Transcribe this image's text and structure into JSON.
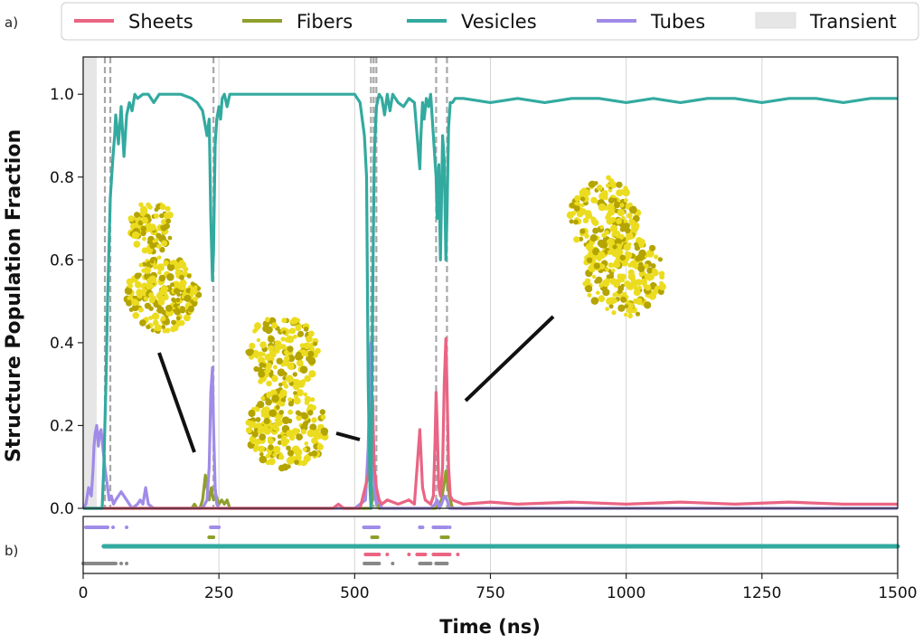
{
  "panel_labels": {
    "a": "a)",
    "b": "b)"
  },
  "colors": {
    "sheets": "#ea6483",
    "fibers": "#8f9f2c",
    "vesicles": "#33aaa0",
    "tubes": "#a08be8",
    "transient": "#e6e6e6",
    "grey": "#888888",
    "blob": "#ecdc20",
    "blob_dark": "#b4a400"
  },
  "legend": [
    {
      "label": "Sheets",
      "color": "#ea6483",
      "kind": "line"
    },
    {
      "label": "Fibers",
      "color": "#8f9f2c",
      "kind": "line"
    },
    {
      "label": "Vesicles",
      "color": "#33aaa0",
      "kind": "line"
    },
    {
      "label": "Tubes",
      "color": "#a08be8",
      "kind": "line"
    },
    {
      "label": "Transient",
      "color": "#e6e6e6",
      "kind": "patch"
    }
  ],
  "chart_data": [
    {
      "type": "line",
      "xlabel": "Time (ns)",
      "ylabel": "Structure Population Fraction",
      "xlim": [
        0,
        1500
      ],
      "ylim": [
        0,
        1.09
      ],
      "xticks": [
        0,
        250,
        500,
        750,
        1000,
        1250,
        1500
      ],
      "yticks": [
        0.0,
        0.2,
        0.4,
        0.6,
        0.8,
        1.0
      ],
      "ytick_labels": [
        "0.0",
        "0.2",
        "0.4",
        "0.6",
        "0.8",
        "1.0"
      ],
      "grid": "vertical",
      "legend_position": "top, outside",
      "transient_region": [
        0,
        25
      ],
      "transition_lines": [
        40,
        50,
        240,
        530,
        535,
        540,
        650,
        670
      ],
      "series": [
        {
          "name": "Vesicles",
          "x": [
            0,
            35,
            38,
            42,
            45,
            50,
            55,
            58,
            60,
            65,
            70,
            75,
            80,
            85,
            90,
            95,
            100,
            110,
            120,
            130,
            140,
            150,
            160,
            180,
            200,
            210,
            220,
            228,
            232,
            235,
            238,
            240,
            243,
            246,
            250,
            253,
            256,
            260,
            265,
            270,
            275,
            280,
            300,
            350,
            400,
            450,
            480,
            500,
            510,
            518,
            522,
            525,
            528,
            530,
            533,
            536,
            540,
            545,
            550,
            555,
            560,
            565,
            570,
            580,
            590,
            600,
            610,
            615,
            620,
            622,
            625,
            628,
            632,
            636,
            640,
            645,
            650,
            652,
            655,
            658,
            660,
            662,
            665,
            668,
            670,
            673,
            676,
            680,
            685,
            700,
            750,
            800,
            850,
            900,
            950,
            1000,
            1050,
            1100,
            1150,
            1200,
            1250,
            1300,
            1350,
            1400,
            1450,
            1500
          ],
          "values": [
            0.0,
            0.0,
            0.1,
            0.3,
            0.5,
            0.75,
            0.85,
            0.9,
            0.95,
            0.88,
            0.97,
            0.85,
            0.95,
            0.98,
            0.96,
            1.0,
            0.99,
            1.0,
            1.0,
            0.98,
            1.0,
            1.0,
            1.0,
            1.0,
            0.99,
            0.98,
            0.96,
            0.9,
            0.94,
            0.7,
            0.55,
            0.62,
            0.88,
            0.94,
            0.97,
            0.94,
            0.99,
            1.0,
            0.97,
            1.0,
            1.0,
            1.0,
            1.0,
            1.0,
            1.0,
            1.0,
            1.0,
            1.0,
            0.98,
            0.9,
            0.8,
            0.3,
            0.05,
            0.0,
            0.5,
            0.85,
            0.97,
            1.0,
            0.99,
            0.95,
            1.0,
            0.96,
            1.0,
            0.98,
            0.97,
            0.99,
            0.98,
            0.9,
            0.82,
            0.9,
            0.98,
            0.94,
            0.99,
            0.97,
            1.0,
            0.9,
            0.8,
            0.7,
            0.83,
            0.6,
            0.75,
            0.9,
            0.84,
            0.6,
            0.7,
            0.92,
            0.98,
            0.98,
            0.99,
            0.99,
            0.98,
            0.99,
            0.98,
            0.99,
            0.99,
            0.98,
            0.99,
            0.98,
            0.99,
            0.99,
            0.98,
            0.99,
            0.99,
            0.98,
            0.99,
            0.99
          ]
        },
        {
          "name": "Sheets",
          "x": [
            0,
            460,
            470,
            480,
            510,
            525,
            530,
            533,
            536,
            540,
            545,
            550,
            560,
            580,
            600,
            610,
            615,
            620,
            625,
            630,
            640,
            645,
            648,
            650,
            652,
            655,
            658,
            662,
            665,
            668,
            670,
            673,
            676,
            680,
            700,
            750,
            800,
            900,
            1000,
            1100,
            1200,
            1300,
            1400,
            1500
          ],
          "values": [
            0.0,
            0.0,
            0.01,
            0.0,
            0.0,
            0.08,
            0.2,
            0.26,
            0.1,
            0.05,
            0.02,
            0.01,
            0.02,
            0.01,
            0.02,
            0.01,
            0.1,
            0.19,
            0.05,
            0.02,
            0.01,
            0.03,
            0.16,
            0.28,
            0.2,
            0.05,
            0.03,
            0.1,
            0.3,
            0.41,
            0.3,
            0.1,
            0.03,
            0.02,
            0.01,
            0.015,
            0.01,
            0.015,
            0.01,
            0.015,
            0.01,
            0.015,
            0.01,
            0.01
          ]
        },
        {
          "name": "Fibers",
          "x": [
            0,
            200,
            205,
            210,
            215,
            220,
            225,
            228,
            232,
            236,
            240,
            245,
            250,
            255,
            260,
            265,
            270,
            530,
            535,
            540,
            545,
            650,
            660,
            665,
            668,
            672,
            676,
            680,
            1500
          ],
          "values": [
            0.0,
            0.0,
            0.01,
            0.0,
            0.0,
            0.02,
            0.08,
            0.05,
            0.02,
            0.05,
            0.02,
            0.03,
            0.01,
            0.02,
            0.01,
            0.02,
            0.0,
            0.0,
            0.05,
            0.03,
            0.0,
            0.0,
            0.02,
            0.06,
            0.09,
            0.05,
            0.02,
            0.0,
            0.0
          ]
        },
        {
          "name": "Tubes",
          "x": [
            0,
            5,
            10,
            15,
            18,
            20,
            22,
            25,
            28,
            30,
            33,
            36,
            40,
            45,
            48,
            52,
            56,
            60,
            70,
            80,
            90,
            100,
            105,
            110,
            115,
            120,
            130,
            150,
            180,
            200,
            220,
            228,
            232,
            235,
            238,
            240,
            243,
            246,
            250,
            260,
            300,
            400,
            500,
            520,
            525,
            528,
            530,
            533,
            536,
            540,
            545,
            550,
            560,
            640,
            648,
            652,
            656,
            660,
            665,
            670,
            675,
            680,
            700,
            1500
          ],
          "values": [
            0.0,
            0.01,
            0.05,
            0.03,
            0.09,
            0.15,
            0.18,
            0.2,
            0.15,
            0.18,
            0.19,
            0.15,
            0.1,
            0.05,
            0.02,
            0.03,
            0.01,
            0.02,
            0.04,
            0.02,
            0.0,
            0.01,
            0.02,
            0.01,
            0.05,
            0.01,
            0.0,
            0.0,
            0.0,
            0.0,
            0.0,
            0.02,
            0.1,
            0.28,
            0.34,
            0.2,
            0.05,
            0.01,
            0.0,
            0.0,
            0.0,
            0.0,
            0.0,
            0.02,
            0.15,
            0.32,
            0.4,
            0.2,
            0.05,
            0.01,
            0.02,
            0.0,
            0.0,
            0.0,
            0.01,
            0.02,
            0.0,
            0.01,
            0.03,
            0.02,
            0.0,
            0.0,
            0.0,
            0.0
          ]
        }
      ]
    },
    {
      "type": "scatter",
      "xlim": [
        0,
        1500
      ],
      "xticks": [
        0,
        250,
        500,
        750,
        1000,
        1250,
        1500
      ],
      "xtick_labels": [
        "0",
        "250",
        "500",
        "750",
        "1000",
        "1250",
        "1500"
      ],
      "xlabel": "Time (ns)",
      "rows": [
        {
          "name": "Tubes",
          "segments": [
            [
              5,
              45
            ],
            [
              235,
              250
            ],
            [
              517,
              545
            ],
            [
              620,
              625
            ],
            [
              645,
              670
            ]
          ],
          "dots": [
            55,
            80,
            240,
            660,
            675
          ]
        },
        {
          "name": "Fibers",
          "segments": [
            [
              232,
              240
            ],
            [
              532,
              542
            ],
            [
              660,
              672
            ]
          ],
          "dots": []
        },
        {
          "name": "Vesicles",
          "segments": [
            [
              38,
              1500
            ]
          ],
          "dots": []
        },
        {
          "name": "Sheets",
          "segments": [
            [
              520,
              545
            ],
            [
              615,
              630
            ],
            [
              645,
              675
            ]
          ],
          "dots": [
            560,
            600,
            690
          ]
        },
        {
          "name": "Transient",
          "segments": [
            [
              0,
              60
            ],
            [
              518,
              545
            ],
            [
              620,
              640
            ],
            [
              650,
              672
            ]
          ],
          "dots": [
            70,
            80,
            570
          ]
        }
      ]
    }
  ]
}
